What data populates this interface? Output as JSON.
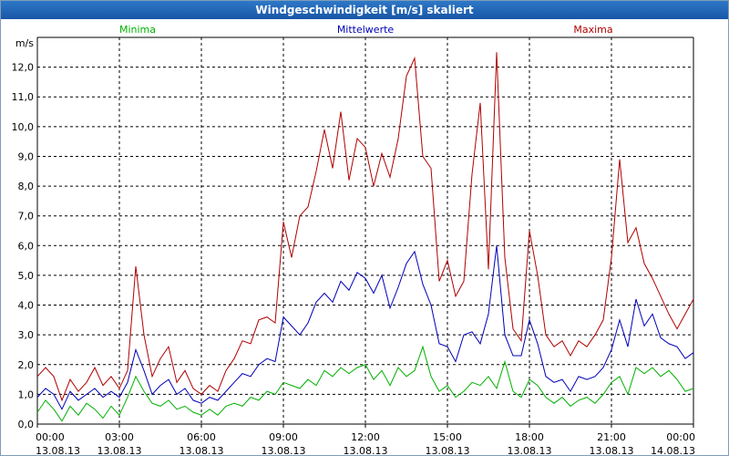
{
  "window": {
    "title": "Windgeschwindigkeit [m/s] skaliert"
  },
  "chart_data": {
    "type": "line",
    "title": "Windgeschwindigkeit [m/s] skaliert",
    "ylabel": "m/s",
    "ylim": [
      0,
      13
    ],
    "y_ticks": [
      "0,0",
      "1,0",
      "2,0",
      "3,0",
      "4,0",
      "5,0",
      "6,0",
      "7,0",
      "8,0",
      "9,0",
      "10,0",
      "11,0",
      "12,0"
    ],
    "x_range_hours": [
      0,
      24
    ],
    "x_ticks": [
      {
        "hour": 0,
        "time": "00:00",
        "date": "13.08.13"
      },
      {
        "hour": 3,
        "time": "03:00",
        "date": "13.08.13"
      },
      {
        "hour": 6,
        "time": "06:00",
        "date": "13.08.13"
      },
      {
        "hour": 9,
        "time": "09:00",
        "date": "13.08.13"
      },
      {
        "hour": 12,
        "time": "12:00",
        "date": "13.08.13"
      },
      {
        "hour": 15,
        "time": "15:00",
        "date": "13.08.13"
      },
      {
        "hour": 18,
        "time": "18:00",
        "date": "13.08.13"
      },
      {
        "hour": 21,
        "time": "21:00",
        "date": "13.08.13"
      },
      {
        "hour": 24,
        "time": "00:00",
        "date": "14.08.13"
      }
    ],
    "grid": true,
    "series": [
      {
        "name": "Minima",
        "color": "#00b000",
        "points": [
          [
            0.0,
            0.4
          ],
          [
            0.3,
            0.8
          ],
          [
            0.6,
            0.5
          ],
          [
            0.9,
            0.1
          ],
          [
            1.2,
            0.6
          ],
          [
            1.5,
            0.3
          ],
          [
            1.8,
            0.7
          ],
          [
            2.1,
            0.5
          ],
          [
            2.4,
            0.2
          ],
          [
            2.7,
            0.6
          ],
          [
            3.0,
            0.3
          ],
          [
            3.3,
            0.9
          ],
          [
            3.6,
            1.6
          ],
          [
            3.9,
            1.1
          ],
          [
            4.2,
            0.7
          ],
          [
            4.5,
            0.6
          ],
          [
            4.8,
            0.8
          ],
          [
            5.1,
            0.5
          ],
          [
            5.4,
            0.6
          ],
          [
            5.7,
            0.4
          ],
          [
            6.0,
            0.3
          ],
          [
            6.3,
            0.5
          ],
          [
            6.6,
            0.3
          ],
          [
            6.9,
            0.6
          ],
          [
            7.2,
            0.7
          ],
          [
            7.5,
            0.6
          ],
          [
            7.8,
            0.9
          ],
          [
            8.1,
            0.8
          ],
          [
            8.4,
            1.1
          ],
          [
            8.7,
            1.0
          ],
          [
            9.0,
            1.4
          ],
          [
            9.3,
            1.3
          ],
          [
            9.6,
            1.2
          ],
          [
            9.9,
            1.5
          ],
          [
            10.2,
            1.3
          ],
          [
            10.5,
            1.8
          ],
          [
            10.8,
            1.6
          ],
          [
            11.1,
            1.9
          ],
          [
            11.4,
            1.7
          ],
          [
            11.7,
            1.9
          ],
          [
            12.0,
            2.0
          ],
          [
            12.3,
            1.5
          ],
          [
            12.6,
            1.8
          ],
          [
            12.9,
            1.3
          ],
          [
            13.2,
            1.9
          ],
          [
            13.5,
            1.6
          ],
          [
            13.8,
            1.8
          ],
          [
            14.1,
            2.6
          ],
          [
            14.4,
            1.6
          ],
          [
            14.7,
            1.1
          ],
          [
            15.0,
            1.3
          ],
          [
            15.3,
            0.9
          ],
          [
            15.6,
            1.1
          ],
          [
            15.9,
            1.4
          ],
          [
            16.2,
            1.3
          ],
          [
            16.5,
            1.6
          ],
          [
            16.8,
            1.2
          ],
          [
            17.1,
            2.1
          ],
          [
            17.4,
            1.1
          ],
          [
            17.7,
            0.9
          ],
          [
            18.0,
            1.5
          ],
          [
            18.3,
            1.3
          ],
          [
            18.6,
            0.9
          ],
          [
            18.9,
            0.7
          ],
          [
            19.2,
            0.9
          ],
          [
            19.5,
            0.6
          ],
          [
            19.8,
            0.8
          ],
          [
            20.1,
            0.9
          ],
          [
            20.4,
            0.7
          ],
          [
            20.7,
            1.0
          ],
          [
            21.0,
            1.4
          ],
          [
            21.3,
            1.6
          ],
          [
            21.6,
            1.0
          ],
          [
            21.9,
            1.9
          ],
          [
            22.2,
            1.7
          ],
          [
            22.5,
            1.9
          ],
          [
            22.8,
            1.6
          ],
          [
            23.1,
            1.8
          ],
          [
            23.4,
            1.5
          ],
          [
            23.7,
            1.1
          ],
          [
            24.0,
            1.2
          ]
        ]
      },
      {
        "name": "Mittelwerte",
        "color": "#0000b8",
        "points": [
          [
            0.0,
            0.9
          ],
          [
            0.3,
            1.2
          ],
          [
            0.6,
            1.0
          ],
          [
            0.9,
            0.5
          ],
          [
            1.2,
            1.1
          ],
          [
            1.5,
            0.8
          ],
          [
            1.8,
            1.0
          ],
          [
            2.1,
            1.2
          ],
          [
            2.4,
            0.9
          ],
          [
            2.7,
            1.1
          ],
          [
            3.0,
            0.9
          ],
          [
            3.3,
            1.4
          ],
          [
            3.6,
            2.5
          ],
          [
            3.9,
            1.8
          ],
          [
            4.2,
            1.0
          ],
          [
            4.5,
            1.3
          ],
          [
            4.8,
            1.5
          ],
          [
            5.1,
            1.0
          ],
          [
            5.4,
            1.2
          ],
          [
            5.7,
            0.8
          ],
          [
            6.0,
            0.7
          ],
          [
            6.3,
            0.9
          ],
          [
            6.6,
            0.8
          ],
          [
            6.9,
            1.1
          ],
          [
            7.2,
            1.4
          ],
          [
            7.5,
            1.7
          ],
          [
            7.8,
            1.6
          ],
          [
            8.1,
            2.0
          ],
          [
            8.4,
            2.2
          ],
          [
            8.7,
            2.1
          ],
          [
            9.0,
            3.6
          ],
          [
            9.3,
            3.3
          ],
          [
            9.6,
            3.0
          ],
          [
            9.9,
            3.4
          ],
          [
            10.2,
            4.1
          ],
          [
            10.5,
            4.4
          ],
          [
            10.8,
            4.1
          ],
          [
            11.1,
            4.8
          ],
          [
            11.4,
            4.5
          ],
          [
            11.7,
            5.1
          ],
          [
            12.0,
            4.9
          ],
          [
            12.3,
            4.4
          ],
          [
            12.6,
            5.0
          ],
          [
            12.9,
            3.9
          ],
          [
            13.2,
            4.6
          ],
          [
            13.5,
            5.4
          ],
          [
            13.8,
            5.8
          ],
          [
            14.1,
            4.7
          ],
          [
            14.4,
            4.0
          ],
          [
            14.7,
            2.7
          ],
          [
            15.0,
            2.6
          ],
          [
            15.3,
            2.1
          ],
          [
            15.6,
            3.0
          ],
          [
            15.9,
            3.1
          ],
          [
            16.2,
            2.7
          ],
          [
            16.5,
            3.7
          ],
          [
            16.8,
            6.0
          ],
          [
            17.1,
            3.0
          ],
          [
            17.4,
            2.3
          ],
          [
            17.7,
            2.3
          ],
          [
            18.0,
            3.5
          ],
          [
            18.3,
            2.7
          ],
          [
            18.6,
            1.6
          ],
          [
            18.9,
            1.4
          ],
          [
            19.2,
            1.5
          ],
          [
            19.5,
            1.1
          ],
          [
            19.8,
            1.6
          ],
          [
            20.1,
            1.5
          ],
          [
            20.4,
            1.6
          ],
          [
            20.7,
            1.9
          ],
          [
            21.0,
            2.5
          ],
          [
            21.3,
            3.5
          ],
          [
            21.6,
            2.6
          ],
          [
            21.9,
            4.2
          ],
          [
            22.2,
            3.3
          ],
          [
            22.5,
            3.7
          ],
          [
            22.8,
            2.9
          ],
          [
            23.1,
            2.7
          ],
          [
            23.4,
            2.6
          ],
          [
            23.7,
            2.2
          ],
          [
            24.0,
            2.4
          ]
        ]
      },
      {
        "name": "Maxima",
        "color": "#b00000",
        "points": [
          [
            0.0,
            1.6
          ],
          [
            0.3,
            1.9
          ],
          [
            0.6,
            1.6
          ],
          [
            0.9,
            0.8
          ],
          [
            1.2,
            1.5
          ],
          [
            1.5,
            1.1
          ],
          [
            1.8,
            1.4
          ],
          [
            2.1,
            1.9
          ],
          [
            2.4,
            1.3
          ],
          [
            2.7,
            1.6
          ],
          [
            3.0,
            1.2
          ],
          [
            3.3,
            1.8
          ],
          [
            3.6,
            5.3
          ],
          [
            3.9,
            3.0
          ],
          [
            4.2,
            1.6
          ],
          [
            4.5,
            2.2
          ],
          [
            4.8,
            2.6
          ],
          [
            5.1,
            1.4
          ],
          [
            5.4,
            1.8
          ],
          [
            5.7,
            1.2
          ],
          [
            6.0,
            1.0
          ],
          [
            6.3,
            1.3
          ],
          [
            6.6,
            1.1
          ],
          [
            6.9,
            1.8
          ],
          [
            7.2,
            2.2
          ],
          [
            7.5,
            2.8
          ],
          [
            7.8,
            2.7
          ],
          [
            8.1,
            3.5
          ],
          [
            8.4,
            3.6
          ],
          [
            8.7,
            3.4
          ],
          [
            9.0,
            6.8
          ],
          [
            9.3,
            5.6
          ],
          [
            9.6,
            7.0
          ],
          [
            9.9,
            7.3
          ],
          [
            10.2,
            8.5
          ],
          [
            10.5,
            9.9
          ],
          [
            10.8,
            8.6
          ],
          [
            11.1,
            10.5
          ],
          [
            11.4,
            8.2
          ],
          [
            11.7,
            9.6
          ],
          [
            12.0,
            9.3
          ],
          [
            12.3,
            8.0
          ],
          [
            12.6,
            9.1
          ],
          [
            12.9,
            8.3
          ],
          [
            13.2,
            9.6
          ],
          [
            13.5,
            11.7
          ],
          [
            13.8,
            12.3
          ],
          [
            14.1,
            9.0
          ],
          [
            14.4,
            8.6
          ],
          [
            14.7,
            4.8
          ],
          [
            15.0,
            5.5
          ],
          [
            15.3,
            4.3
          ],
          [
            15.6,
            4.8
          ],
          [
            15.9,
            8.4
          ],
          [
            16.2,
            10.8
          ],
          [
            16.5,
            5.2
          ],
          [
            16.8,
            12.5
          ],
          [
            17.1,
            5.6
          ],
          [
            17.4,
            3.2
          ],
          [
            17.7,
            2.8
          ],
          [
            18.0,
            6.5
          ],
          [
            18.3,
            5.0
          ],
          [
            18.6,
            3.0
          ],
          [
            18.9,
            2.6
          ],
          [
            19.2,
            2.8
          ],
          [
            19.5,
            2.3
          ],
          [
            19.8,
            2.8
          ],
          [
            20.1,
            2.6
          ],
          [
            20.4,
            3.0
          ],
          [
            20.7,
            3.5
          ],
          [
            21.0,
            5.6
          ],
          [
            21.3,
            8.9
          ],
          [
            21.6,
            6.1
          ],
          [
            21.9,
            6.6
          ],
          [
            22.2,
            5.4
          ],
          [
            22.5,
            4.9
          ],
          [
            22.8,
            4.3
          ],
          [
            23.1,
            3.7
          ],
          [
            23.4,
            3.2
          ],
          [
            23.7,
            3.7
          ],
          [
            24.0,
            4.2
          ]
        ]
      }
    ]
  }
}
